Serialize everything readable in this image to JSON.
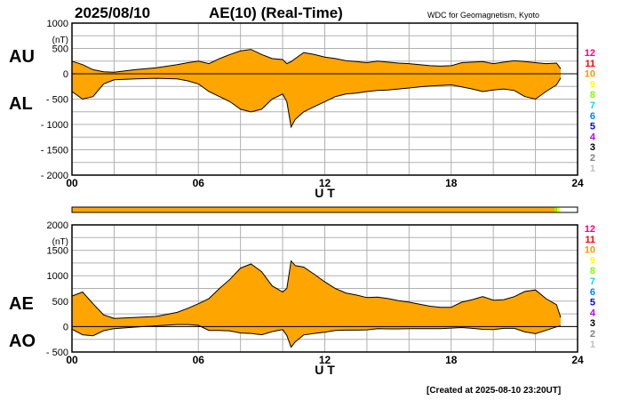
{
  "header": {
    "date": "2025/08/10",
    "title": "AE(10) (Real-Time)",
    "source": "WDC for Geomagnetism, Kyoto"
  },
  "footer": {
    "created": "[Created at 2025-08-10 23:20UT]"
  },
  "station_levels": {
    "labels": [
      "12",
      "11",
      "10",
      "9",
      "8",
      "7",
      "6",
      "5",
      "4",
      "3",
      "2",
      "1"
    ],
    "colors": [
      "#ff0080",
      "#ff0000",
      "#ff9900",
      "#ffff00",
      "#80ff00",
      "#00e0e0",
      "#0080ff",
      "#0000ff",
      "#c000ff",
      "#000000",
      "#808080",
      "#c0c0c0"
    ]
  },
  "coverage_bar": {
    "fill_color": "#ffa500",
    "final_colors": [
      "#80ff00",
      "#ffff00"
    ],
    "fraction": 0.965
  },
  "chart_data": [
    {
      "type": "area",
      "series": [
        {
          "name": "AU"
        },
        {
          "name": "AL"
        }
      ],
      "unit": "(nT)",
      "xlabel": "U T",
      "x_ticks": [
        0,
        6,
        12,
        18,
        24
      ],
      "x_tick_labels": [
        "00",
        "06",
        "12",
        "18",
        "24"
      ],
      "ylim": [
        -2000,
        1000
      ],
      "y_ticks": [
        1000,
        500,
        0,
        -500,
        -1000,
        -1500,
        -2000
      ],
      "y_tick_labels": [
        "1000",
        "500",
        "0",
        "- 500",
        "- 1000",
        "- 1500",
        "- 2000"
      ],
      "grid": true,
      "x": [
        0,
        0.5,
        1,
        1.5,
        2,
        3,
        4,
        5,
        5.5,
        6,
        6.5,
        7,
        7.5,
        8,
        8.5,
        9,
        9.5,
        10,
        10.2,
        10.4,
        10.6,
        11,
        11.5,
        12,
        12.5,
        13,
        13.5,
        14,
        14.5,
        15,
        15.5,
        16,
        16.5,
        17,
        17.5,
        18,
        18.5,
        19,
        19.5,
        20,
        20.5,
        21,
        21.5,
        22,
        22.5,
        23,
        23.2
      ],
      "upper": [
        250,
        180,
        80,
        40,
        30,
        80,
        120,
        180,
        220,
        250,
        200,
        300,
        380,
        450,
        480,
        380,
        300,
        280,
        200,
        240,
        300,
        420,
        380,
        330,
        300,
        260,
        240,
        220,
        250,
        230,
        210,
        200,
        180,
        160,
        150,
        160,
        220,
        230,
        240,
        200,
        230,
        260,
        240,
        220,
        200,
        210,
        100
      ],
      "lower": [
        -350,
        -500,
        -450,
        -200,
        -120,
        -100,
        -90,
        -100,
        -140,
        -200,
        -350,
        -450,
        -550,
        -700,
        -750,
        -700,
        -500,
        -400,
        -550,
        -1050,
        -900,
        -750,
        -650,
        -550,
        -450,
        -400,
        -380,
        -350,
        -330,
        -320,
        -300,
        -280,
        -260,
        -240,
        -230,
        -220,
        -260,
        -300,
        -350,
        -320,
        -300,
        -330,
        -450,
        -500,
        -350,
        -220,
        -80
      ]
    },
    {
      "type": "area",
      "series": [
        {
          "name": "AE"
        },
        {
          "name": "AO"
        }
      ],
      "unit": "(nT)",
      "xlabel": "U T",
      "x_ticks": [
        0,
        6,
        12,
        18,
        24
      ],
      "x_tick_labels": [
        "00",
        "06",
        "12",
        "18",
        "24"
      ],
      "ylim": [
        -500,
        2000
      ],
      "y_ticks": [
        2000,
        1500,
        1000,
        500,
        0,
        -500
      ],
      "y_tick_labels": [
        "2000",
        "1500",
        "1000",
        "500",
        "0",
        "- 500"
      ],
      "grid": true,
      "x": [
        0,
        0.5,
        1,
        1.5,
        2,
        3,
        4,
        5,
        5.5,
        6,
        6.5,
        7,
        7.5,
        8,
        8.5,
        9,
        9.5,
        10,
        10.2,
        10.4,
        10.6,
        11,
        11.5,
        12,
        12.5,
        13,
        13.5,
        14,
        14.5,
        15,
        15.5,
        16,
        16.5,
        17,
        17.5,
        18,
        18.5,
        19,
        19.5,
        20,
        20.5,
        21,
        21.5,
        22,
        22.5,
        23,
        23.2
      ],
      "upper": [
        600,
        680,
        450,
        230,
        160,
        180,
        200,
        280,
        360,
        450,
        550,
        750,
        930,
        1150,
        1230,
        1080,
        800,
        680,
        750,
        1290,
        1200,
        1170,
        1030,
        880,
        750,
        660,
        620,
        570,
        580,
        550,
        510,
        480,
        440,
        400,
        380,
        380,
        480,
        530,
        590,
        520,
        530,
        590,
        690,
        720,
        550,
        430,
        180
      ],
      "lower": [
        -50,
        -160,
        -180,
        -80,
        -40,
        -10,
        15,
        40,
        40,
        25,
        -75,
        -75,
        -85,
        -125,
        -135,
        -160,
        -100,
        -60,
        -175,
        -405,
        -300,
        -165,
        -135,
        -110,
        -75,
        -70,
        -70,
        -65,
        -40,
        -45,
        -45,
        -40,
        -40,
        -40,
        -40,
        -30,
        -20,
        -35,
        -55,
        -60,
        -35,
        -35,
        -105,
        -140,
        -75,
        -5,
        10
      ]
    }
  ]
}
